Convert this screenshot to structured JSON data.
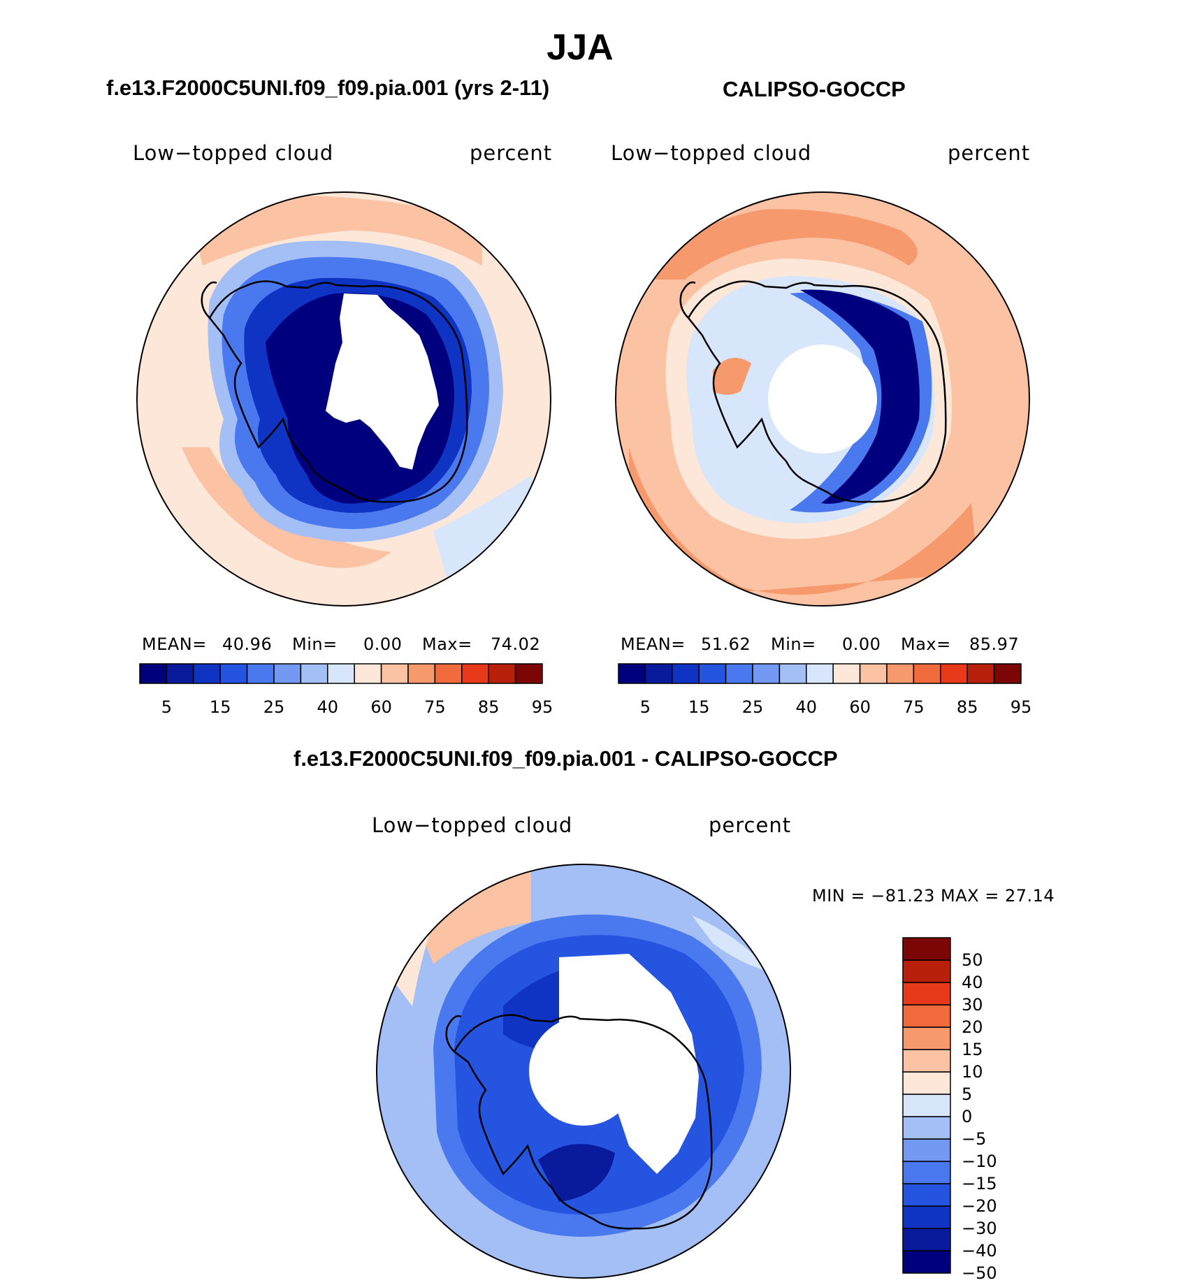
{
  "main_title": "JJA",
  "panels": [
    {
      "id": "model",
      "top_title": "f.e13.F2000C5UNI.f09_f09.pia.001 (yrs 2-11)",
      "left_label": "Low−topped cloud",
      "right_label": "percent",
      "stats": {
        "mean_label": "MEAN=",
        "mean": "40.96",
        "min_label": "Min=",
        "min": "0.00",
        "max_label": "Max=",
        "max": "74.02"
      }
    },
    {
      "id": "obs",
      "top_title": "CALIPSO-GOCCP",
      "left_label": "Low−topped cloud",
      "right_label": "percent",
      "stats": {
        "mean_label": "MEAN=",
        "mean": "51.62",
        "min_label": "Min=",
        "min": "0.00",
        "max_label": "Max=",
        "max": "85.97"
      }
    },
    {
      "id": "diff",
      "top_title": "f.e13.F2000C5UNI.f09_f09.pia.001 - CALIPSO-GOCCP",
      "left_label": "Low−topped cloud",
      "right_label": "percent",
      "stats": {
        "text": "MIN = −81.23 MAX =  27.14"
      }
    }
  ],
  "chart_data": [
    {
      "type": "heatmap",
      "title": "f.e13.F2000C5UNI.f09_f09.pia.001 (yrs 2-11)",
      "variable": "Low−topped cloud",
      "units": "percent",
      "projection": "south polar stereographic",
      "mean": 40.96,
      "min": 0.0,
      "max": 74.02,
      "colorbar_levels": [
        5,
        10,
        15,
        20,
        25,
        30,
        40,
        50,
        60,
        70,
        75,
        80,
        85,
        90,
        95
      ],
      "colorbar_tick_labels": [
        "5",
        "15",
        "25",
        "40",
        "60",
        "75",
        "85",
        "95"
      ]
    },
    {
      "type": "heatmap",
      "title": "CALIPSO-GOCCP",
      "variable": "Low−topped cloud",
      "units": "percent",
      "projection": "south polar stereographic",
      "mean": 51.62,
      "min": 0.0,
      "max": 85.97,
      "colorbar_levels": [
        5,
        10,
        15,
        20,
        25,
        30,
        40,
        50,
        60,
        70,
        75,
        80,
        85,
        90,
        95
      ],
      "colorbar_tick_labels": [
        "5",
        "15",
        "25",
        "40",
        "60",
        "75",
        "85",
        "95"
      ]
    },
    {
      "type": "heatmap",
      "title": "f.e13.F2000C5UNI.f09_f09.pia.001 - CALIPSO-GOCCP",
      "variable": "Low−topped cloud",
      "units": "percent",
      "projection": "south polar stereographic",
      "min": -81.23,
      "max": 27.14,
      "colorbar_levels": [
        -50,
        -40,
        -30,
        -20,
        -15,
        -10,
        -5,
        0,
        5,
        10,
        15,
        20,
        30,
        40,
        50
      ],
      "colorbar_tick_labels": [
        "50",
        "40",
        "30",
        "20",
        "15",
        "10",
        "5",
        "0",
        "−5",
        "−10",
        "−15",
        "−20",
        "−30",
        "−40",
        "−50"
      ]
    }
  ],
  "colors": {
    "palette": [
      "#00007e",
      "#0a1a9c",
      "#0f33c2",
      "#2555e0",
      "#4a78ee",
      "#7499f2",
      "#a4bef6",
      "#d7e6fb",
      "#fde7d8",
      "#fbc3a3",
      "#f69a6e",
      "#f26b3d",
      "#e8391a",
      "#b8200c",
      "#7c0506"
    ],
    "ocean_light": "#fde7d8",
    "ocean_mid": "#fbc3a3",
    "ice_white": "#ffffff",
    "coast": "#000000"
  }
}
